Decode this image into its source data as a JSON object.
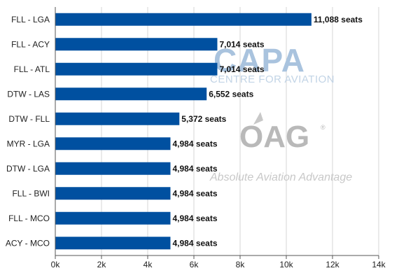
{
  "chart_data": {
    "type": "bar",
    "orientation": "horizontal",
    "categories": [
      "FLL - LGA",
      "FLL - ACY",
      "FLL - ATL",
      "DTW - LAS",
      "DTW - FLL",
      "MYR - LGA",
      "DTW - LGA",
      "FLL - BWI",
      "FLL - MCO",
      "ACY - MCO"
    ],
    "values": [
      11088,
      7014,
      7014,
      6552,
      5372,
      4984,
      4984,
      4984,
      4984,
      4984
    ],
    "data_labels": [
      "11,088 seats",
      "7,014 seats",
      "7,014 seats",
      "6,552 seats",
      "5,372 seats",
      "4,984 seats",
      "4,984 seats",
      "4,984 seats",
      "4,984 seats",
      "4,984 seats"
    ],
    "xlim": [
      0,
      14000
    ],
    "x_ticks": [
      0,
      2000,
      4000,
      6000,
      8000,
      10000,
      12000,
      14000
    ],
    "x_tick_labels": [
      "0k",
      "2k",
      "4k",
      "6k",
      "8k",
      "10k",
      "12k",
      "14k"
    ],
    "title": "",
    "xlabel": "",
    "ylabel": "",
    "grid": "vertical",
    "legend": "none",
    "colors": {
      "bar": "#0050a0",
      "grid": "#d4d4d4",
      "axis": "#555555"
    }
  },
  "watermarks": {
    "capa_logo": "CAPA",
    "capa_sub": "CENTRE FOR AVIATION",
    "oag_logo": "OAG",
    "oag_registered": "®",
    "oag_tagline": "Absolute Aviation Advantage"
  }
}
